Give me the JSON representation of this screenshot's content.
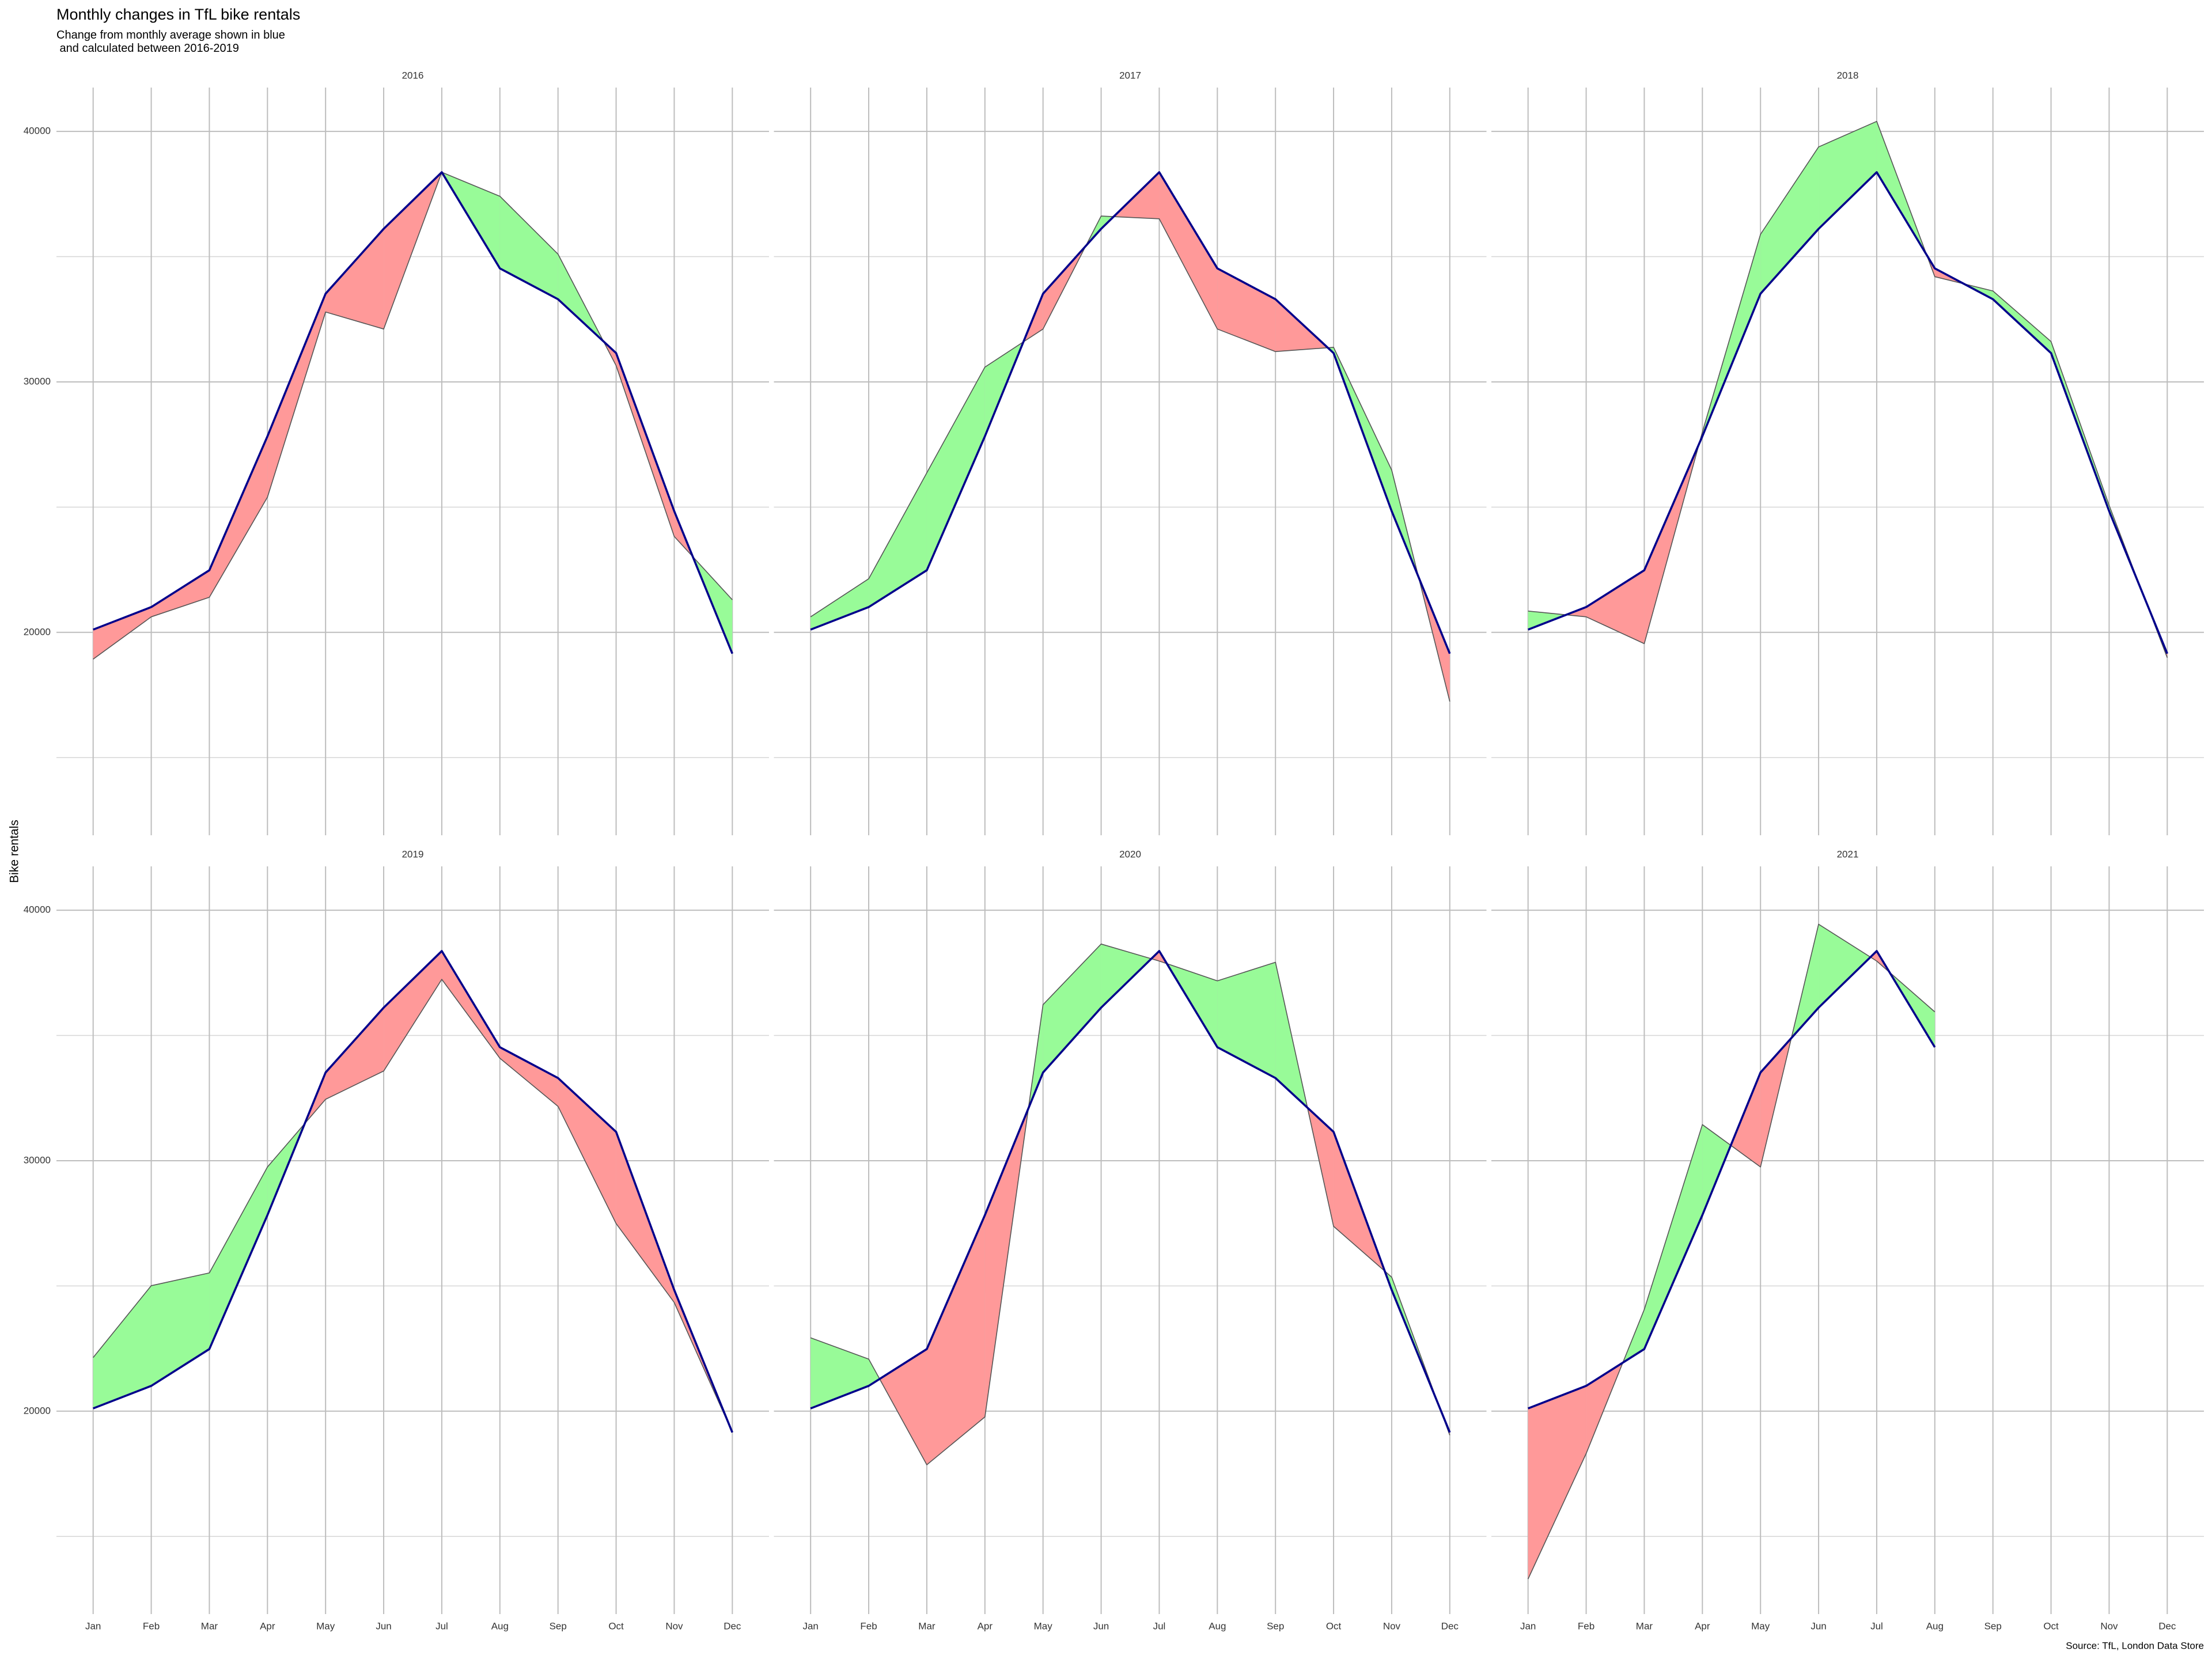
{
  "chart_data": {
    "type": "ribbon",
    "title": "Monthly changes in TfL bike rentals",
    "subtitle": "Change from monthly average shown in blue\n and calculated between 2016-2019",
    "y_label": "Bike rentals",
    "caption": "Source: TfL, London Data Store",
    "categories": [
      "Jan",
      "Feb",
      "Mar",
      "Apr",
      "May",
      "Jun",
      "Jul",
      "Aug",
      "Sep",
      "Oct",
      "Nov",
      "Dec"
    ],
    "average": {
      "color": "#00008b",
      "values": [
        20110,
        21010,
        22480,
        27830,
        33520,
        36110,
        38370,
        34530,
        33300,
        31150,
        24840,
        19150
      ]
    },
    "above_color": "#98fb98",
    "below_color": "#ff9999",
    "line_color": "#555555",
    "panels": [
      {
        "title": "2016",
        "values": [
          18930,
          20620,
          21400,
          25400,
          32790,
          32110,
          38370,
          37410,
          35100,
          30650,
          23830,
          21300
        ]
      },
      {
        "title": "2017",
        "values": [
          20620,
          22140,
          26370,
          30590,
          32110,
          36620,
          36510,
          32110,
          31210,
          31380,
          26480,
          17240
        ]
      },
      {
        "title": "2018",
        "values": [
          20850,
          20620,
          19550,
          28000,
          35890,
          39380,
          40400,
          34200,
          33630,
          31610,
          25070,
          18990
        ]
      },
      {
        "title": "2019",
        "values": [
          22140,
          25010,
          25520,
          29750,
          32450,
          33580,
          37240,
          34090,
          32170,
          27490,
          24340,
          19150
        ]
      },
      {
        "title": "2020",
        "values": [
          22930,
          22080,
          17860,
          19770,
          36230,
          38650,
          37970,
          37180,
          37920,
          27380,
          25350,
          19040
        ]
      },
      {
        "title": "2021",
        "values": [
          13300,
          18310,
          24060,
          31440,
          29750,
          39440,
          37970,
          35940,
          null,
          null,
          null,
          null
        ]
      }
    ],
    "ylim": [
      11900,
      41750
    ],
    "yticks": [
      20000,
      30000,
      40000
    ],
    "yminor": [
      15000,
      25000,
      35000
    ],
    "grid": true
  }
}
